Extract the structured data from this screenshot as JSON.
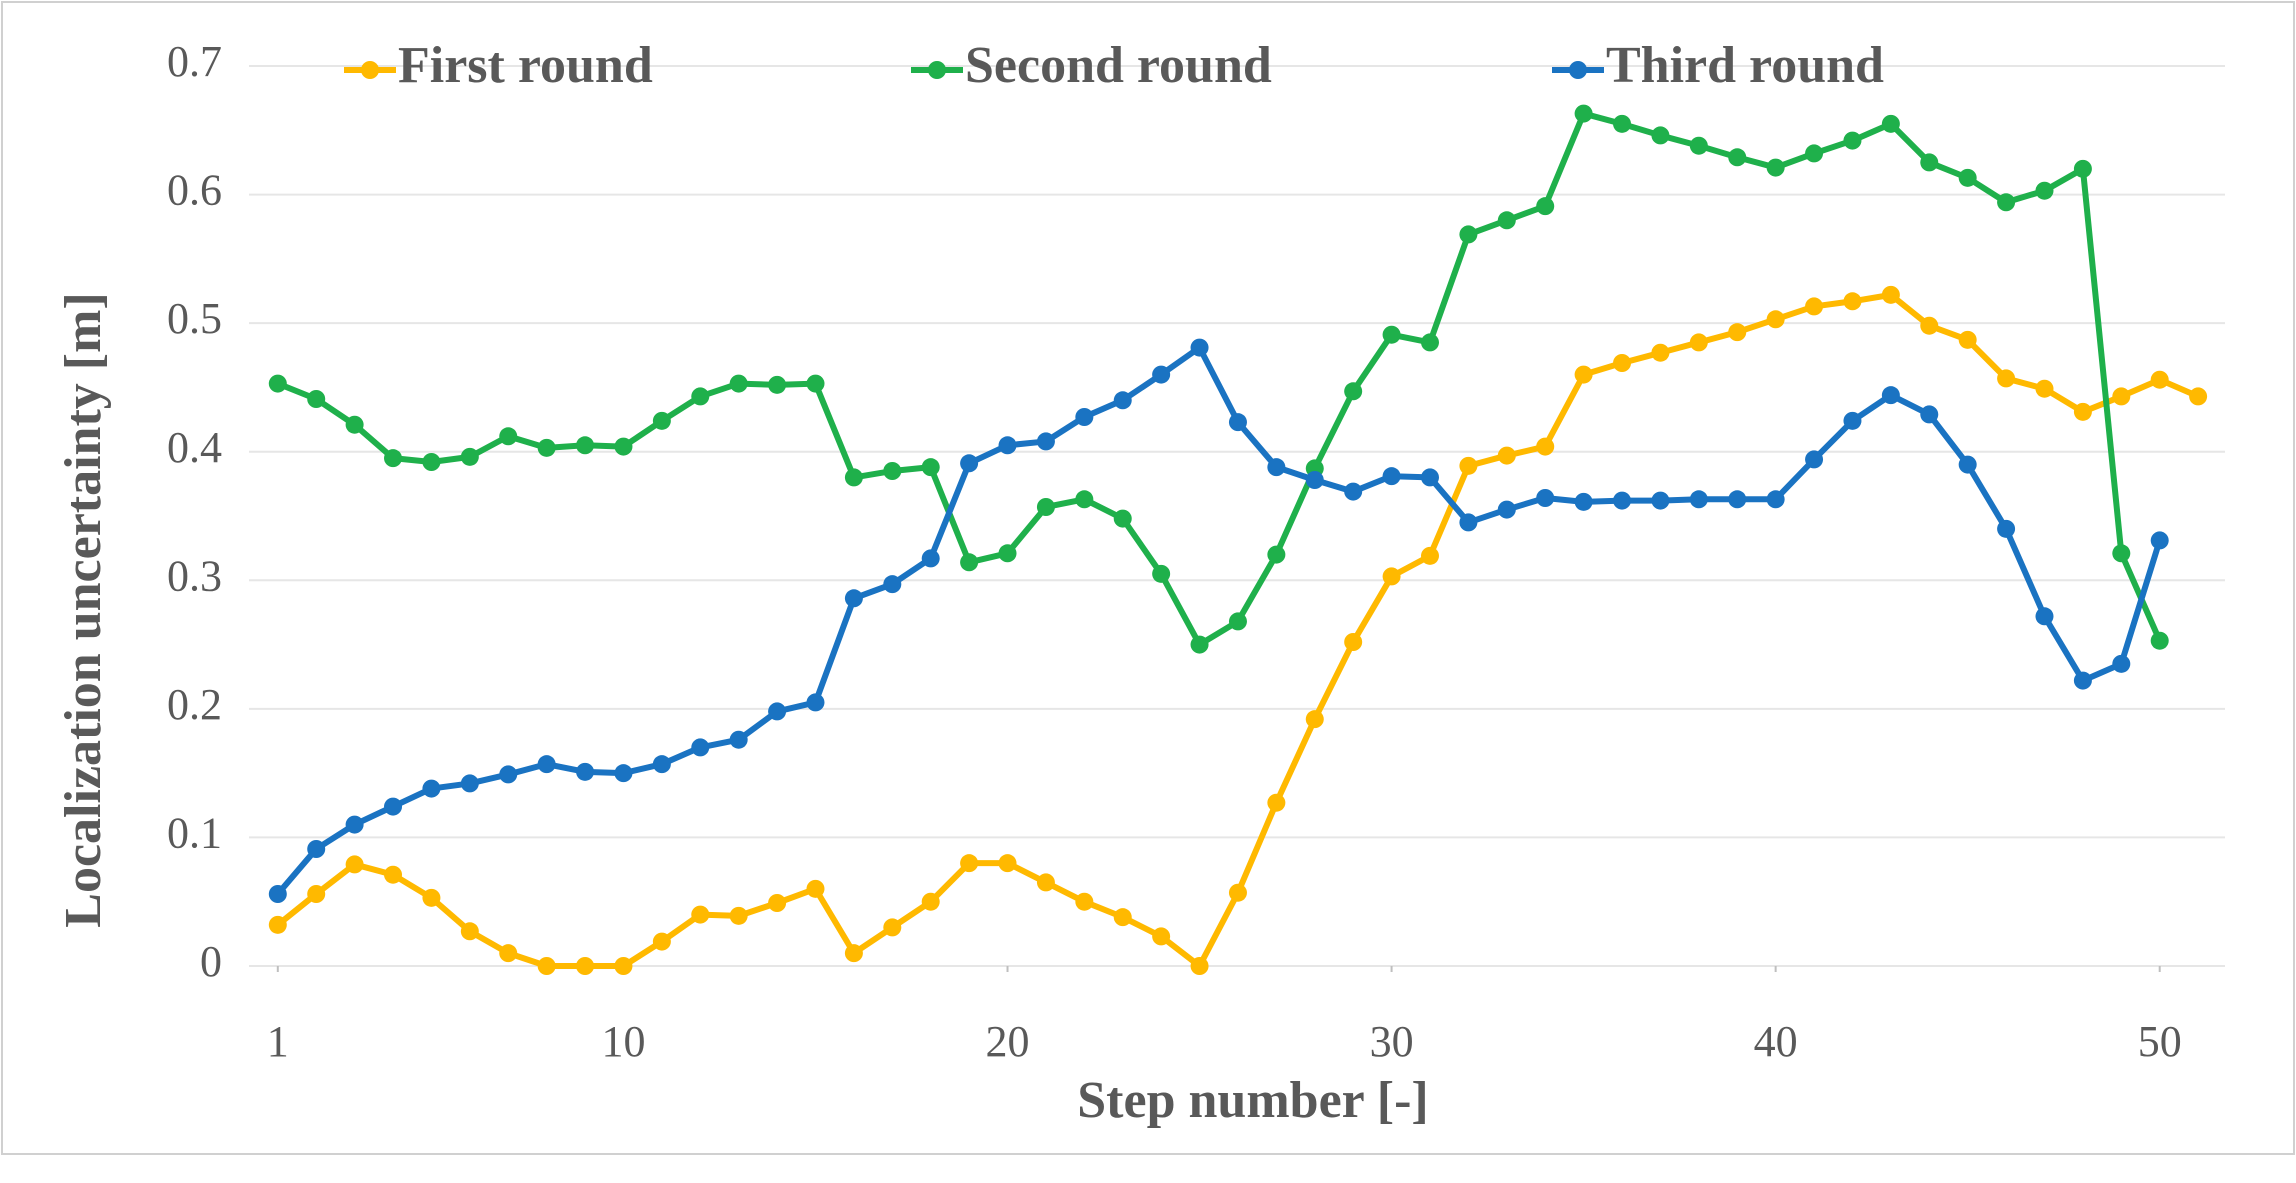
{
  "chart_data": {
    "type": "line",
    "x_label": "Step number [-]",
    "y_label": "Localization uncertainty [m]",
    "x": [
      1,
      2,
      3,
      4,
      5,
      6,
      7,
      8,
      9,
      10,
      11,
      12,
      13,
      14,
      15,
      16,
      17,
      18,
      19,
      20,
      21,
      22,
      23,
      24,
      25,
      26,
      27,
      28,
      29,
      30,
      31,
      32,
      33,
      34,
      35,
      36,
      37,
      38,
      39,
      40,
      41,
      42,
      43,
      44,
      45,
      46,
      47,
      48,
      49,
      50,
      51
    ],
    "series": [
      {
        "name": "First round",
        "color": "#ffb900",
        "values": [
          0.032,
          0.056,
          0.079,
          0.071,
          0.053,
          0.027,
          0.01,
          0,
          0,
          0,
          0.019,
          0.04,
          0.039,
          0.049,
          0.06,
          0.01,
          0.03,
          0.05,
          0.08,
          0.08,
          0.065,
          0.05,
          0.038,
          0.023,
          0,
          0.057,
          0.127,
          0.192,
          0.252,
          0.303,
          0.319,
          0.389,
          0.397,
          0.404,
          0.46,
          0.469,
          0.477,
          0.485,
          0.493,
          0.503,
          0.513,
          0.517,
          0.522,
          0.498,
          0.487,
          0.457,
          0.449,
          0.431,
          0.443,
          0.456,
          0.443
        ]
      },
      {
        "name": "Second round",
        "color": "#1fb04b",
        "values": [
          0.453,
          0.441,
          0.421,
          0.395,
          0.392,
          0.396,
          0.412,
          0.403,
          0.405,
          0.404,
          0.424,
          0.443,
          0.453,
          0.452,
          0.453,
          0.38,
          0.385,
          0.388,
          0.314,
          0.321,
          0.357,
          0.363,
          0.348,
          0.305,
          0.25,
          0.268,
          0.32,
          0.387,
          0.447,
          0.491,
          0.485,
          0.569,
          0.58,
          0.591,
          0.663,
          0.655,
          0.646,
          0.638,
          0.629,
          0.621,
          0.632,
          0.642,
          0.655,
          0.625,
          0.613,
          0.594,
          0.603,
          0.62,
          0.321,
          0.253,
          null
        ]
      },
      {
        "name": "Third round",
        "color": "#1a73c2",
        "values": [
          0.056,
          0.091,
          0.11,
          0.124,
          0.138,
          0.142,
          0.149,
          0.157,
          0.151,
          0.15,
          0.157,
          0.17,
          0.176,
          0.198,
          0.205,
          0.286,
          0.297,
          0.317,
          0.391,
          0.405,
          0.408,
          0.427,
          0.44,
          0.46,
          0.481,
          0.423,
          0.388,
          0.378,
          0.369,
          0.381,
          0.38,
          0.345,
          0.355,
          0.364,
          0.361,
          0.362,
          0.362,
          0.363,
          0.363,
          0.363,
          0.394,
          0.424,
          0.444,
          0.429,
          0.39,
          0.34,
          0.272,
          0.222,
          0.235,
          0.331,
          null
        ]
      }
    ],
    "xlim": [
      0.25,
      51.7
    ],
    "xticks": [
      1,
      10,
      20,
      30,
      40,
      50
    ],
    "ylim": [
      0,
      0.7
    ],
    "yticks": [
      0,
      0.1,
      0.2,
      0.3,
      0.4,
      0.5,
      0.6,
      0.7
    ],
    "grid": true,
    "legend": "top"
  }
}
